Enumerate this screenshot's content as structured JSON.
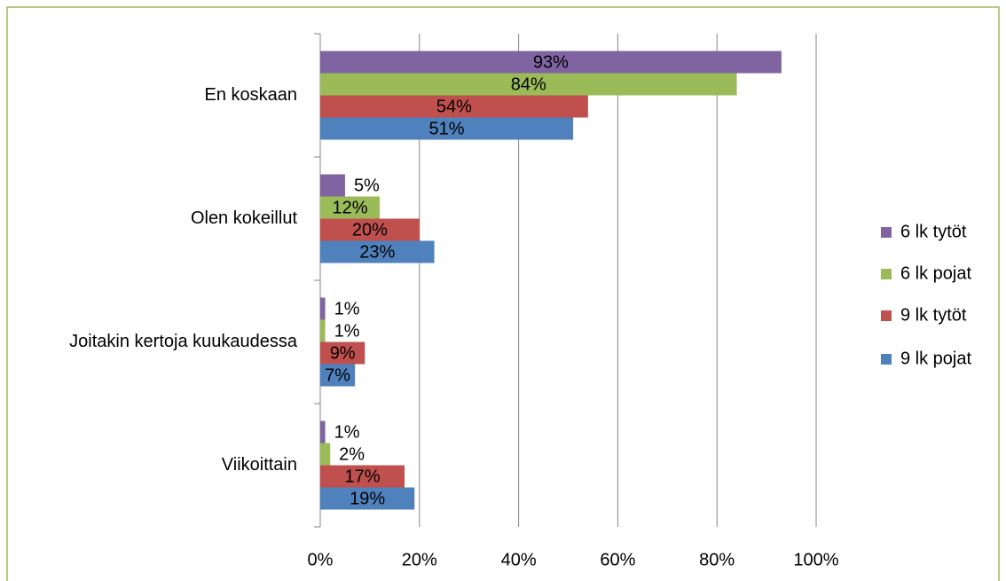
{
  "chart_data": {
    "type": "barh",
    "categories": [
      "En koskaan",
      "Olen kokeillut",
      "Joitakin kertoja kuukaudessa",
      "Viikoittain"
    ],
    "series": [
      {
        "name": "6 lk tytöt",
        "color": "#8064a2",
        "values": [
          93,
          5,
          1,
          1
        ],
        "value_labels": [
          "93%",
          "5%",
          "1%",
          "1%"
        ]
      },
      {
        "name": "6 lk pojat",
        "color": "#9bbb59",
        "values": [
          84,
          12,
          1,
          2
        ],
        "value_labels": [
          "84%",
          "12%",
          "1%",
          "2%"
        ]
      },
      {
        "name": "9 lk tytöt",
        "color": "#c0504d",
        "values": [
          54,
          20,
          9,
          17
        ],
        "value_labels": [
          "54%",
          "20%",
          "9%",
          "17%"
        ]
      },
      {
        "name": "9 lk pojat",
        "color": "#4f81bd",
        "values": [
          51,
          23,
          7,
          19
        ],
        "value_labels": [
          "51%",
          "23%",
          "7%",
          "19%"
        ]
      }
    ],
    "xlim": [
      0,
      100
    ],
    "xticks": [
      {
        "value": 0,
        "label": "0%"
      },
      {
        "value": 20,
        "label": "20%"
      },
      {
        "value": 40,
        "label": "40%"
      },
      {
        "value": 60,
        "label": "60%"
      },
      {
        "value": 80,
        "label": "80%"
      },
      {
        "value": 100,
        "label": "100%"
      }
    ],
    "grid": true,
    "legend": "right"
  }
}
